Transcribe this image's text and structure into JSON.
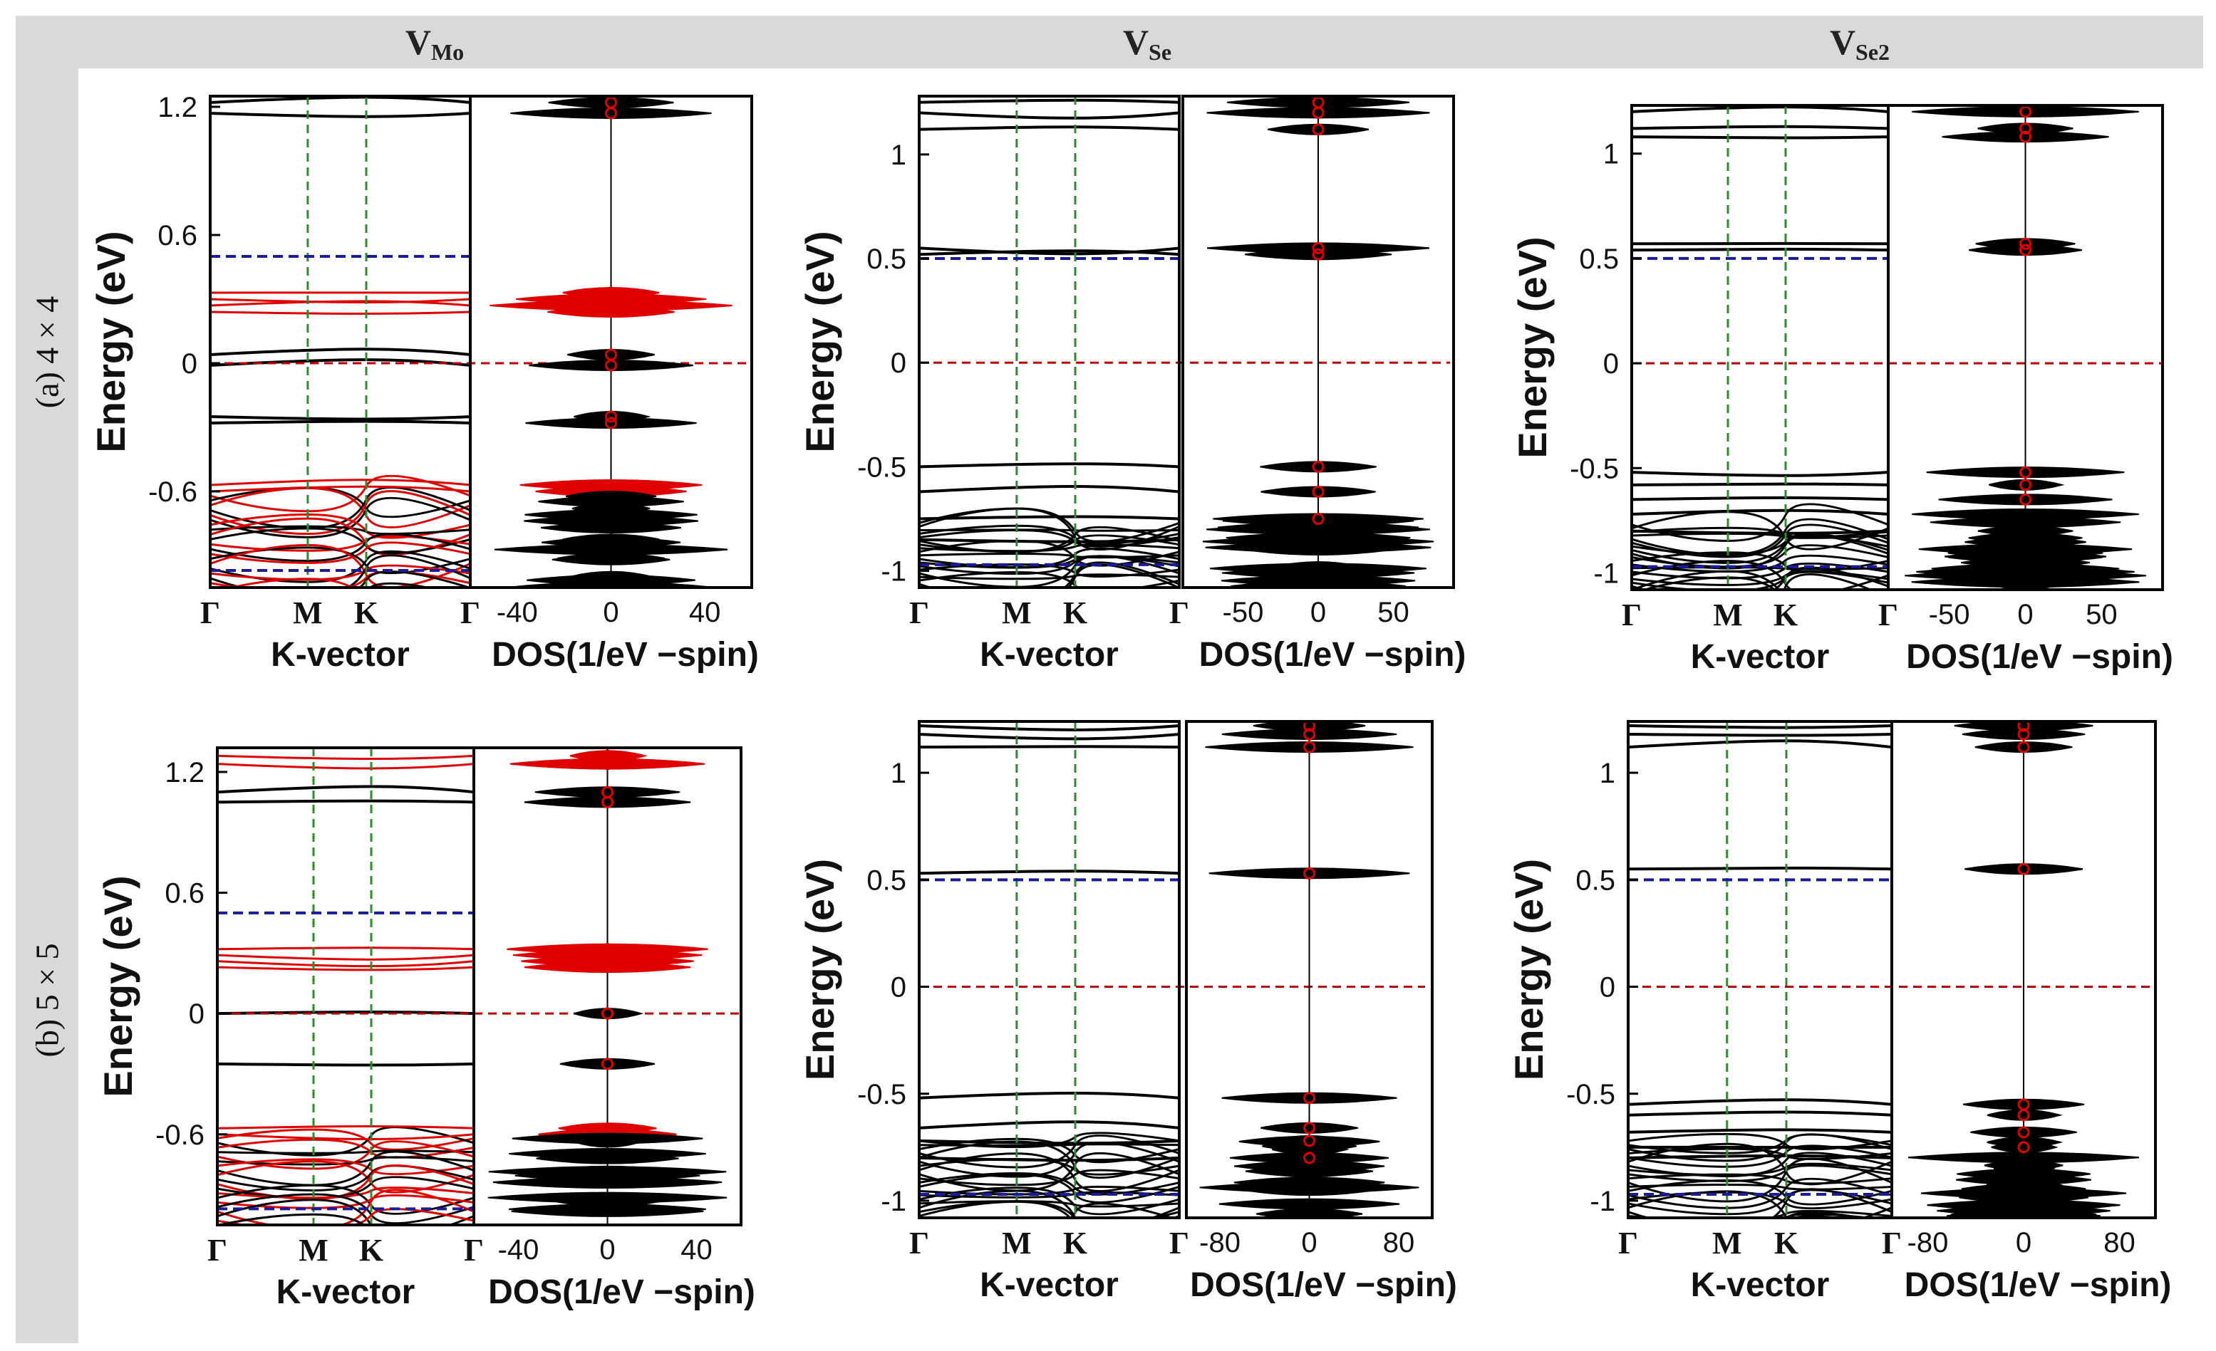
{
  "columns": [
    {
      "main": "V",
      "sub": "Mo"
    },
    {
      "main": "V",
      "sub": "Se"
    },
    {
      "main": "V",
      "sub": "Se2"
    }
  ],
  "rows": [
    "(a) 4 × 4",
    "(b) 5 × 5"
  ],
  "colors": {
    "header_bg": "#d9d9d9",
    "bands_black": "#000000",
    "bands_red": "#e00000",
    "green_dash": "#2e8b2e",
    "blue_dash": "#1a1aa0",
    "red_dash": "#c00000"
  },
  "chart_data": [
    {
      "type": "line",
      "panel": "VMo-4x4",
      "ylabel": "Energy (eV)",
      "xlabel": "K-vector",
      "dos_xlabel": "DOS(1/eV −spin)",
      "kpoints": [
        "Γ",
        "M",
        "K",
        "Γ"
      ],
      "yticks": [
        -0.6,
        0,
        0.6,
        1.2
      ],
      "ylim": [
        -1.05,
        1.25
      ],
      "dos_ticks": [
        -40,
        0,
        40
      ],
      "dos_xlim": [
        -60,
        60
      ],
      "fermi": 0,
      "vbm": -0.97,
      "cbm": 0.5,
      "black_levels": [
        1.22,
        1.17,
        0.04,
        -0.01,
        -0.25,
        -0.28
      ],
      "red_levels": [
        0.33,
        0.3,
        0.27,
        0.24,
        -0.57,
        -0.6
      ],
      "dense_below": -0.6
    },
    {
      "type": "line",
      "panel": "VSe-4x4",
      "ylabel": "Energy (eV)",
      "xlabel": "K-vector",
      "dos_xlabel": "DOS(1/eV −spin)",
      "kpoints": [
        "Γ",
        "M",
        "K",
        "Γ"
      ],
      "yticks": [
        -1,
        -0.5,
        0,
        0.5,
        1
      ],
      "ylim": [
        -1.08,
        1.28
      ],
      "dos_ticks": [
        -50,
        0,
        50
      ],
      "dos_xlim": [
        -90,
        90
      ],
      "fermi": 0,
      "vbm": -0.97,
      "cbm": 0.5,
      "black_levels": [
        1.25,
        1.2,
        1.12,
        0.55,
        0.52,
        -0.5,
        -0.62,
        -0.75,
        -0.85
      ],
      "red_levels": [],
      "dense_below": -0.75
    },
    {
      "type": "line",
      "panel": "VSe2-4x4",
      "ylabel": "Energy (eV)",
      "xlabel": "K-vector",
      "dos_xlabel": "DOS(1/eV −spin)",
      "kpoints": [
        "Γ",
        "M",
        "K",
        "Γ"
      ],
      "yticks": [
        -1,
        -0.5,
        0,
        0.5,
        1
      ],
      "ylim": [
        -1.08,
        1.23
      ],
      "dos_ticks": [
        -50,
        0,
        50
      ],
      "dos_xlim": [
        -90,
        90
      ],
      "fermi": 0,
      "vbm": -0.97,
      "cbm": 0.5,
      "black_levels": [
        1.2,
        1.12,
        1.08,
        0.57,
        0.54,
        -0.52,
        -0.58,
        -0.65,
        -0.72,
        -0.8
      ],
      "red_levels": [],
      "dense_below": -0.75
    },
    {
      "type": "line",
      "panel": "VMo-5x5",
      "ylabel": "Energy (eV)",
      "xlabel": "K-vector",
      "dos_xlabel": "DOS(1/eV −spin)",
      "kpoints": [
        "Γ",
        "M",
        "K",
        "Γ"
      ],
      "yticks": [
        -0.6,
        0,
        0.6,
        1.2
      ],
      "ylim": [
        -1.05,
        1.32
      ],
      "dos_ticks": [
        -40,
        0,
        40
      ],
      "dos_xlim": [
        -60,
        60
      ],
      "fermi": 0,
      "vbm": -0.97,
      "cbm": 0.5,
      "black_levels": [
        1.1,
        1.05,
        0.0,
        -0.25
      ],
      "red_levels": [
        1.28,
        1.24,
        0.32,
        0.29,
        0.26,
        0.23,
        -0.57,
        -0.6
      ],
      "dense_below": -0.6
    },
    {
      "type": "line",
      "panel": "VSe-5x5",
      "ylabel": "Energy (eV)",
      "xlabel": "K-vector",
      "dos_xlabel": "DOS(1/eV −spin)",
      "kpoints": [
        "Γ",
        "M",
        "K",
        "Γ"
      ],
      "yticks": [
        -1,
        -0.5,
        0,
        0.5,
        1
      ],
      "ylim": [
        -1.08,
        1.24
      ],
      "dos_ticks": [
        -80,
        0,
        80
      ],
      "dos_xlim": [
        -110,
        110
      ],
      "fermi": 0,
      "vbm": -0.97,
      "cbm": 0.5,
      "black_levels": [
        1.22,
        1.18,
        1.12,
        0.53,
        -0.52,
        -0.66,
        -0.72,
        -0.8
      ],
      "red_levels": [],
      "dense_below": -0.7
    },
    {
      "type": "line",
      "panel": "VSe2-5x5",
      "ylabel": "Energy (eV)",
      "xlabel": "K-vector",
      "dos_xlabel": "DOS(1/eV −spin)",
      "kpoints": [
        "Γ",
        "M",
        "K",
        "Γ"
      ],
      "yticks": [
        -1,
        -0.5,
        0,
        0.5,
        1
      ],
      "ylim": [
        -1.08,
        1.24
      ],
      "dos_ticks": [
        -80,
        0,
        80
      ],
      "dos_xlim": [
        -110,
        110
      ],
      "fermi": 0,
      "vbm": -0.97,
      "cbm": 0.5,
      "black_levels": [
        1.22,
        1.18,
        1.12,
        0.55,
        -0.55,
        -0.6,
        -0.68,
        -0.75,
        -0.8
      ],
      "red_levels": [],
      "dense_below": -0.7
    }
  ]
}
